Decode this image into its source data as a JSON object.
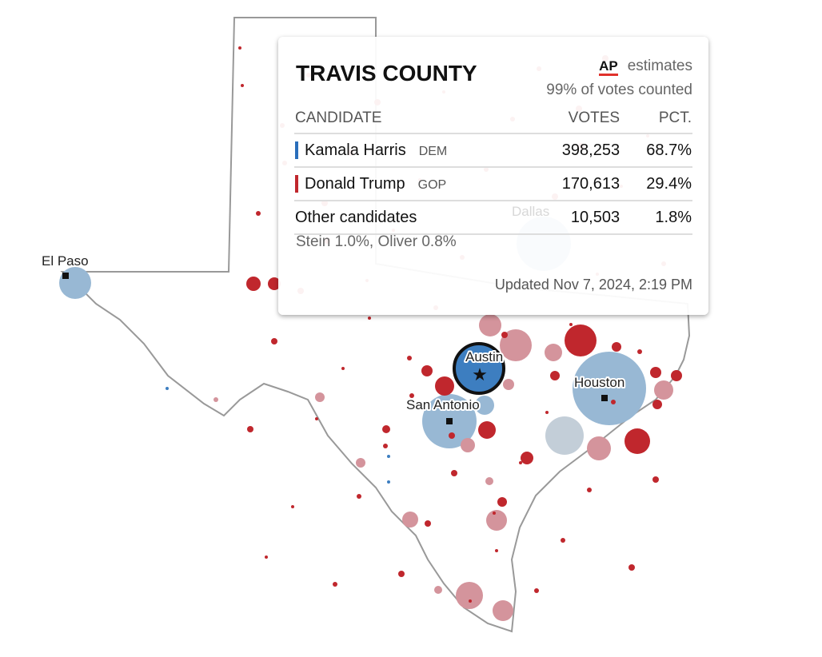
{
  "map": {
    "cities": [
      "El Paso",
      "Austin",
      "San Antonio",
      "Houston",
      "Dallas"
    ],
    "colors": {
      "dem_strong": "#3d7ec0",
      "dem_light": "#98b8d4",
      "gop_strong": "#c0272d",
      "gop_light": "#d4949c",
      "tossup": "#c3ced8"
    }
  },
  "tooltip": {
    "title": "TRAVIS COUNTY",
    "source": "AP",
    "estimates": "estimates",
    "counted": "99% of votes counted",
    "headers": {
      "candidate": "CANDIDATE",
      "votes": "VOTES",
      "pct": "PCT."
    },
    "rows": [
      {
        "name": "Kamala Harris",
        "party": "DEM",
        "votes": "398,253",
        "pct": "68.7%",
        "color": "#2a6ebb"
      },
      {
        "name": "Donald Trump",
        "party": "GOP",
        "votes": "170,613",
        "pct": "29.4%",
        "color": "#c0272d"
      },
      {
        "name": "Other candidates",
        "party": "",
        "votes": "10,503",
        "pct": "1.8%"
      }
    ],
    "others_note": "Stein 1.0%, Oliver 0.8%",
    "updated": "Updated Nov 7, 2024, 2:19 PM"
  }
}
